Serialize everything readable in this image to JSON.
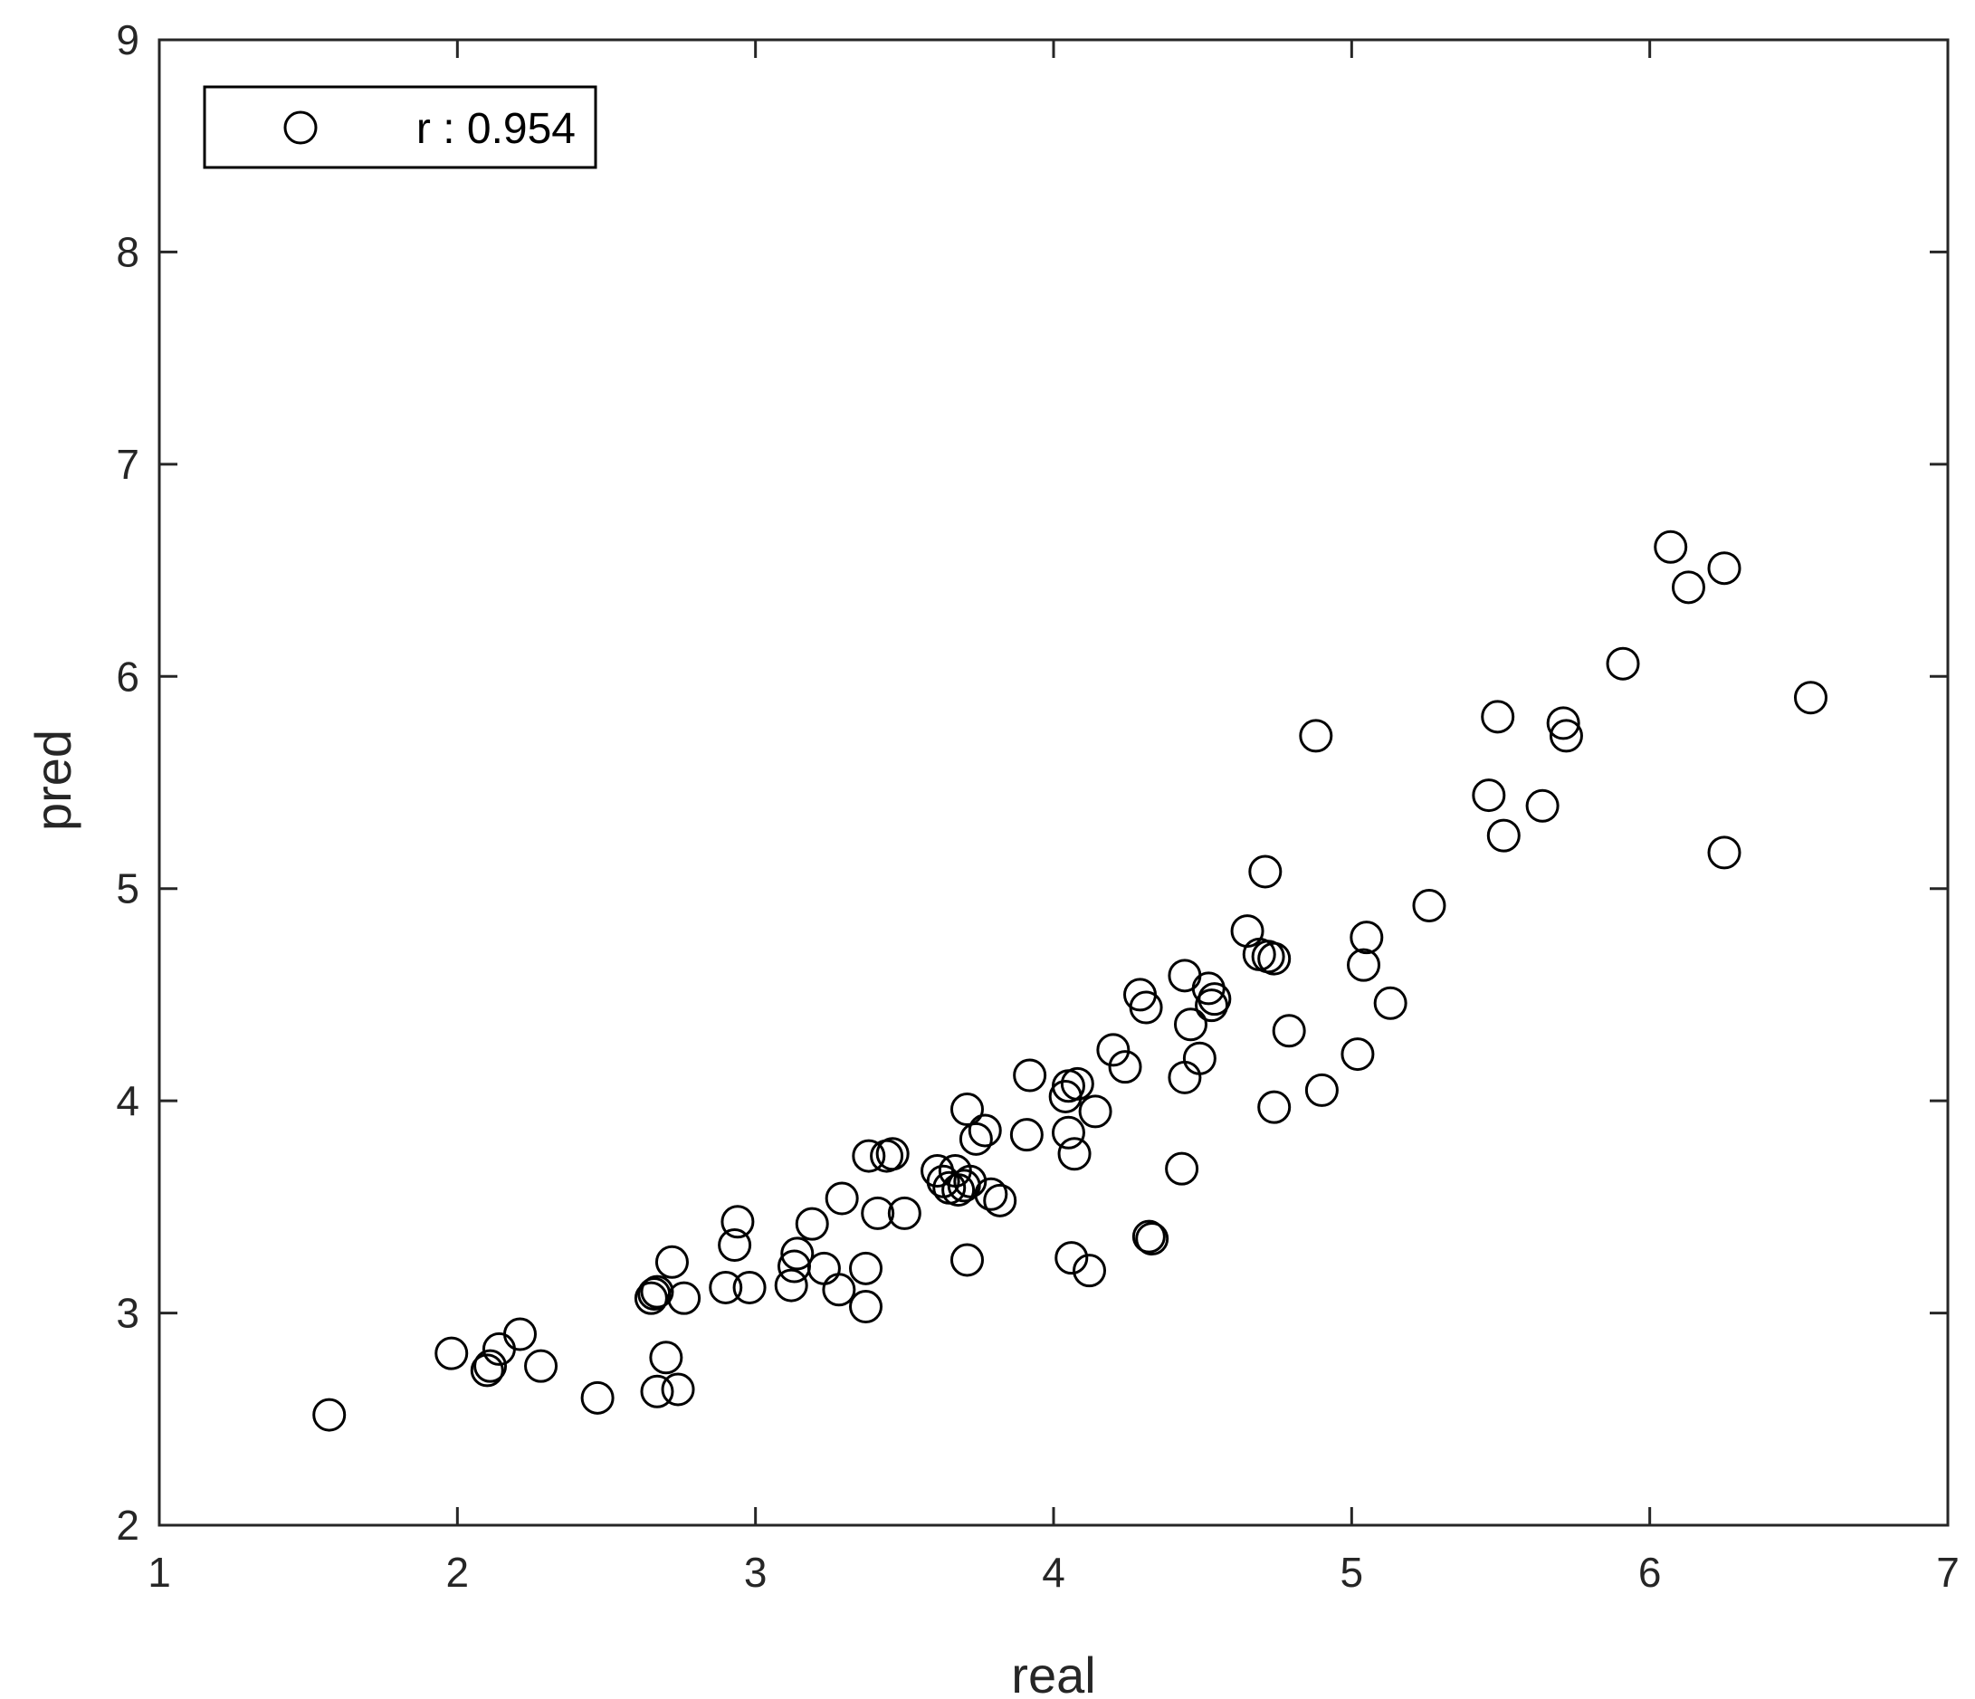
{
  "chart_data": {
    "type": "scatter",
    "title": "",
    "xlabel": "real",
    "ylabel": "pred",
    "xlim": [
      1,
      7
    ],
    "ylim": [
      2,
      9
    ],
    "xticks": [
      "1",
      "2",
      "3",
      "4",
      "5",
      "6",
      "7"
    ],
    "yticks": [
      "2",
      "3",
      "4",
      "5",
      "6",
      "7",
      "8",
      "9"
    ],
    "grid": false,
    "legend_position": "top-left",
    "marker": "open-circle",
    "colors": {
      "marker": "#000000",
      "axes": "#262626"
    },
    "series": [
      {
        "name": "r : 0.954",
        "points": [
          [
            1.57,
            2.52
          ],
          [
            1.98,
            2.81
          ],
          [
            2.1,
            2.73
          ],
          [
            2.11,
            2.75
          ],
          [
            2.14,
            2.83
          ],
          [
            2.21,
            2.9
          ],
          [
            2.28,
            2.75
          ],
          [
            2.47,
            2.6
          ],
          [
            2.65,
            3.07
          ],
          [
            2.66,
            3.09
          ],
          [
            2.67,
            3.1
          ],
          [
            2.67,
            2.63
          ],
          [
            2.7,
            2.79
          ],
          [
            2.72,
            3.24
          ],
          [
            2.74,
            2.64
          ],
          [
            2.76,
            3.07
          ],
          [
            2.9,
            3.12
          ],
          [
            2.93,
            3.32
          ],
          [
            2.94,
            3.43
          ],
          [
            2.98,
            3.12
          ],
          [
            3.12,
            3.13
          ],
          [
            3.13,
            3.22
          ],
          [
            3.14,
            3.28
          ],
          [
            3.19,
            3.42
          ],
          [
            3.23,
            3.21
          ],
          [
            3.28,
            3.11
          ],
          [
            3.29,
            3.54
          ],
          [
            3.37,
            3.21
          ],
          [
            3.37,
            3.03
          ],
          [
            3.38,
            3.74
          ],
          [
            3.41,
            3.47
          ],
          [
            3.44,
            3.74
          ],
          [
            3.46,
            3.75
          ],
          [
            3.5,
            3.47
          ],
          [
            3.61,
            3.67
          ],
          [
            3.63,
            3.62
          ],
          [
            3.65,
            3.59
          ],
          [
            3.67,
            3.67
          ],
          [
            3.68,
            3.58
          ],
          [
            3.7,
            3.6
          ],
          [
            3.71,
            3.96
          ],
          [
            3.71,
            3.25
          ],
          [
            3.72,
            3.62
          ],
          [
            3.74,
            3.82
          ],
          [
            3.77,
            3.86
          ],
          [
            3.79,
            3.56
          ],
          [
            3.82,
            3.53
          ],
          [
            3.91,
            3.84
          ],
          [
            3.92,
            4.12
          ],
          [
            4.04,
            4.02
          ],
          [
            4.05,
            4.07
          ],
          [
            4.05,
            3.85
          ],
          [
            4.06,
            3.26
          ],
          [
            4.07,
            3.75
          ],
          [
            4.08,
            4.08
          ],
          [
            4.12,
            3.2
          ],
          [
            4.14,
            3.95
          ],
          [
            4.2,
            4.24
          ],
          [
            4.24,
            4.16
          ],
          [
            4.29,
            4.5
          ],
          [
            4.31,
            4.44
          ],
          [
            4.32,
            3.36
          ],
          [
            4.33,
            3.35
          ],
          [
            4.43,
            3.68
          ],
          [
            4.44,
            4.59
          ],
          [
            4.44,
            4.11
          ],
          [
            4.46,
            4.36
          ],
          [
            4.49,
            4.2
          ],
          [
            4.52,
            4.53
          ],
          [
            4.53,
            4.45
          ],
          [
            4.54,
            4.48
          ],
          [
            4.65,
            4.8
          ],
          [
            4.69,
            4.69
          ],
          [
            4.71,
            5.08
          ],
          [
            4.72,
            4.68
          ],
          [
            4.74,
            4.67
          ],
          [
            4.74,
            3.97
          ],
          [
            4.79,
            4.33
          ],
          [
            4.88,
            5.72
          ],
          [
            4.9,
            4.05
          ],
          [
            5.02,
            4.22
          ],
          [
            5.04,
            4.64
          ],
          [
            5.05,
            4.77
          ],
          [
            5.13,
            4.46
          ],
          [
            5.26,
            4.92
          ],
          [
            5.46,
            5.44
          ],
          [
            5.49,
            5.81
          ],
          [
            5.51,
            5.25
          ],
          [
            5.64,
            5.39
          ],
          [
            5.71,
            5.78
          ],
          [
            5.72,
            5.72
          ],
          [
            5.91,
            6.06
          ],
          [
            6.07,
            6.61
          ],
          [
            6.13,
            6.42
          ],
          [
            6.25,
            6.51
          ],
          [
            6.25,
            5.17
          ],
          [
            6.54,
            5.9
          ]
        ]
      }
    ]
  }
}
